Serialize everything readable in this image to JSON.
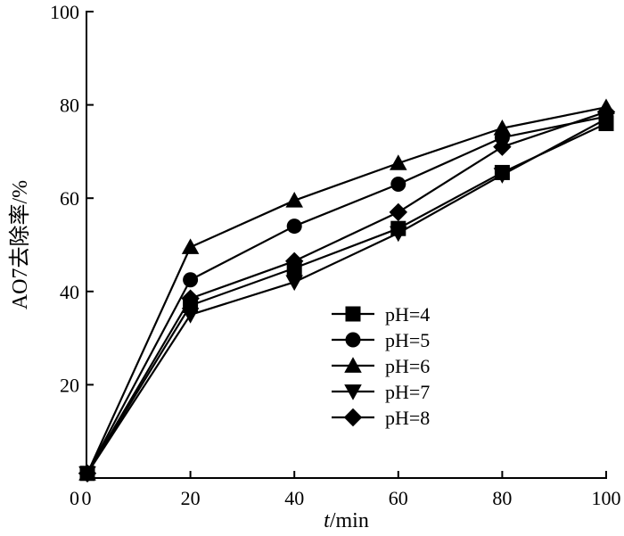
{
  "chart_data": {
    "type": "line",
    "x": [
      0,
      20,
      40,
      60,
      80,
      100
    ],
    "series": [
      {
        "name": "pH=4",
        "marker": "square",
        "values": [
          1,
          37,
          45,
          53.5,
          65.5,
          76
        ]
      },
      {
        "name": "pH=5",
        "marker": "circle",
        "values": [
          1,
          42.5,
          54,
          63,
          73,
          77.5
        ]
      },
      {
        "name": "pH=6",
        "marker": "triangle-up",
        "values": [
          1,
          49.5,
          59.5,
          67.5,
          75,
          79.5
        ]
      },
      {
        "name": "pH=7",
        "marker": "triangle-down",
        "values": [
          1,
          35,
          42,
          52.5,
          65,
          77
        ]
      },
      {
        "name": "pH=8",
        "marker": "diamond",
        "values": [
          1,
          38.5,
          46.5,
          57,
          71,
          78.5
        ]
      }
    ],
    "xlabel_italic": "t",
    "xlabel_rest": "/min",
    "ylabel": "AO7去除率/%",
    "xlim": [
      0,
      100
    ],
    "ylim": [
      0,
      100
    ],
    "xticks": [
      "0",
      "20",
      "40",
      "60",
      "80",
      "100"
    ],
    "yticks": [
      "0",
      "20",
      "40",
      "60",
      "80",
      "100"
    ],
    "grid": false,
    "legend_position": "center-right",
    "color": "#000000"
  }
}
